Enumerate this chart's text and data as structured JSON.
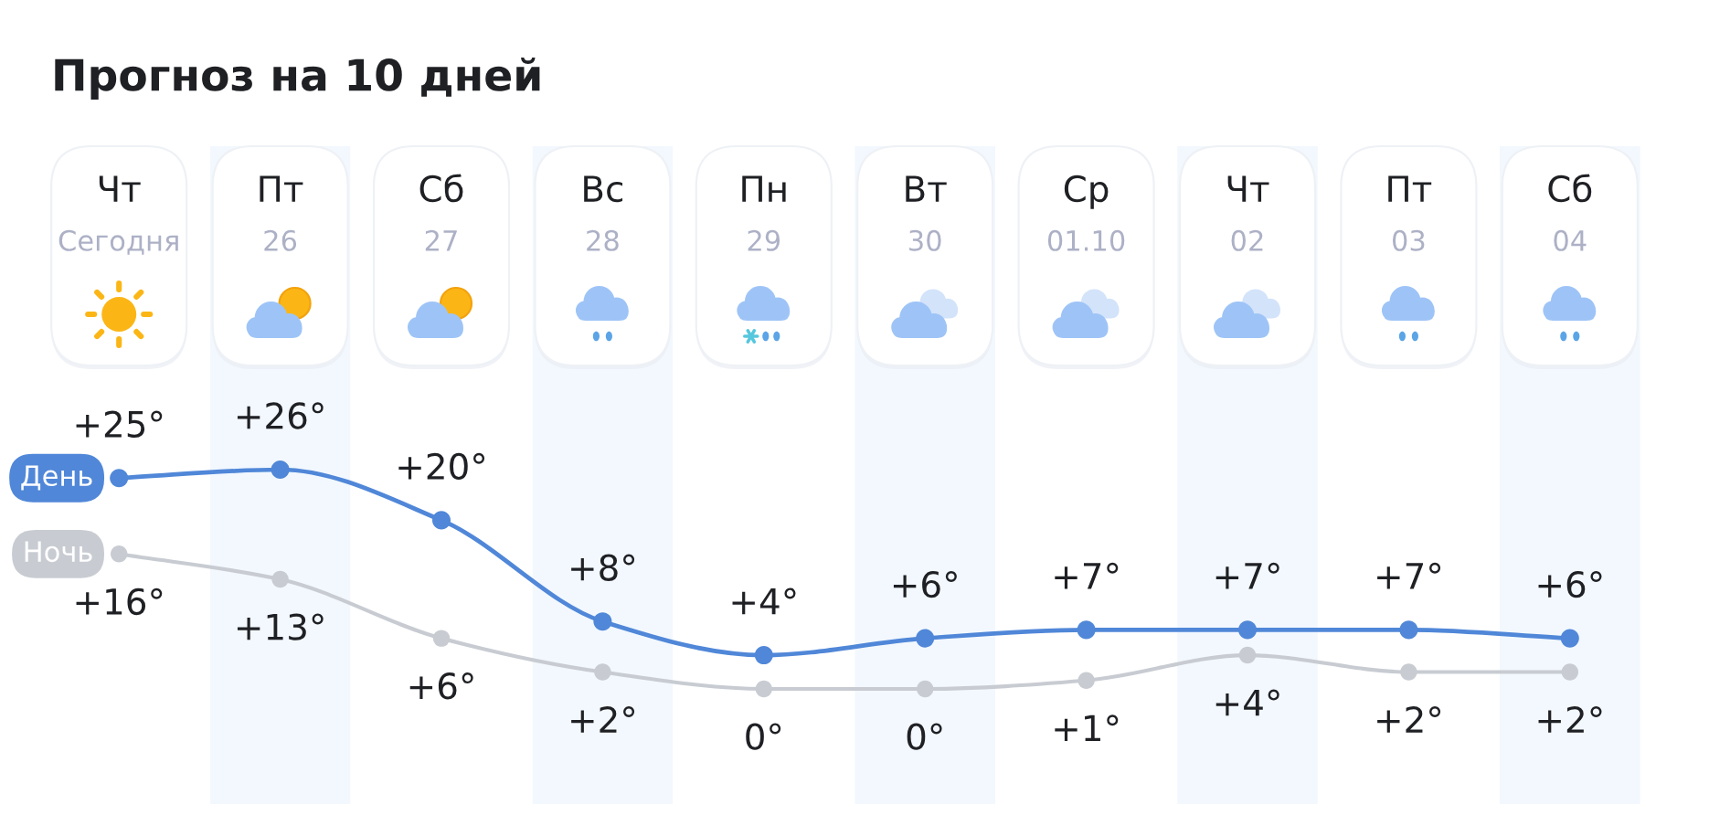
{
  "chart_data": {
    "type": "line",
    "title": "Прогноз на 10 дней",
    "categories": [
      "Чт\nСегодня",
      "Пт\n26",
      "Сб\n27",
      "Вс\n28",
      "Пн\n29",
      "Вт\n30",
      "Ср\n01.10",
      "Чт\n02",
      "Пт\n03",
      "Сб\n04"
    ],
    "series": [
      {
        "name": "День",
        "color": "#5087d8",
        "values": [
          25,
          26,
          20,
          8,
          4,
          6,
          7,
          7,
          7,
          6
        ],
        "value_labels": [
          "+25°",
          "+26°",
          "+20°",
          "+8°",
          "+4°",
          "+6°",
          "+7°",
          "+7°",
          "+7°",
          "+6°"
        ]
      },
      {
        "name": "Ночь",
        "color": "#c8ccd2",
        "values": [
          16,
          13,
          6,
          2,
          0,
          0,
          1,
          4,
          2,
          2
        ],
        "value_labels": [
          "+16°",
          "+13°",
          "+6°",
          "+2°",
          "0°",
          "0°",
          "+1°",
          "+4°",
          "+2°",
          "+2°"
        ]
      }
    ],
    "marker": "circle",
    "line_style": "solid",
    "bands": [
      {
        "axis": "x",
        "from": "Пт\n26",
        "to": "Пт\n26",
        "color": "#f2f8fe"
      },
      {
        "axis": "x",
        "from": "Вс\n28",
        "to": "Вс\n28",
        "color": "#f2f8fe"
      },
      {
        "axis": "x",
        "from": "Вт\n30",
        "to": "Вт\n30",
        "color": "#f2f8fe"
      },
      {
        "axis": "x",
        "from": "Чт\n02",
        "to": "Чт\n02",
        "color": "#f2f8fe"
      },
      {
        "axis": "x",
        "from": "Сб\n04",
        "to": "Сб\n04",
        "color": "#f2f8fe"
      }
    ]
  }
}
